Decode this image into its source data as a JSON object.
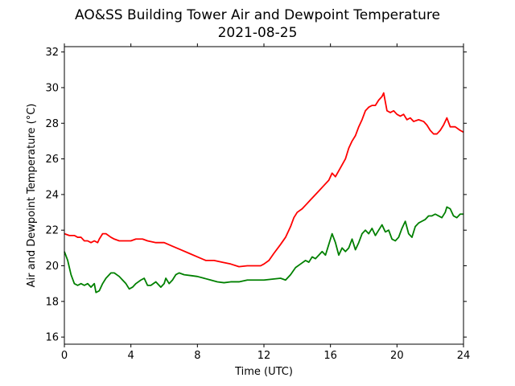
{
  "chart_data": {
    "type": "line",
    "title": "AO&SS Building Tower Air and Dewpoint Temperature",
    "subtitle": "2021-08-25",
    "xlabel": "Time (UTC)",
    "ylabel": "Air and Dewpoint Temperature (°C)",
    "xlim": [
      0,
      24
    ],
    "ylim": [
      15.6,
      32.3
    ],
    "x_ticks": [
      0,
      4,
      8,
      12,
      16,
      20,
      24
    ],
    "y_ticks": [
      16,
      18,
      20,
      22,
      24,
      26,
      28,
      30,
      32
    ],
    "grid": false,
    "legend": "none",
    "series": [
      {
        "color": "#ff0000",
        "points": [
          [
            0,
            21.8
          ],
          [
            0.3,
            21.7
          ],
          [
            0.6,
            21.7
          ],
          [
            0.8,
            21.6
          ],
          [
            1.0,
            21.6
          ],
          [
            1.2,
            21.4
          ],
          [
            1.4,
            21.4
          ],
          [
            1.6,
            21.3
          ],
          [
            1.8,
            21.4
          ],
          [
            2.0,
            21.3
          ],
          [
            2.1,
            21.5
          ],
          [
            2.3,
            21.8
          ],
          [
            2.5,
            21.8
          ],
          [
            2.8,
            21.6
          ],
          [
            3.0,
            21.5
          ],
          [
            3.3,
            21.4
          ],
          [
            3.6,
            21.4
          ],
          [
            4.0,
            21.4
          ],
          [
            4.3,
            21.5
          ],
          [
            4.7,
            21.5
          ],
          [
            5.0,
            21.4
          ],
          [
            5.5,
            21.3
          ],
          [
            6.0,
            21.3
          ],
          [
            6.5,
            21.1
          ],
          [
            7.0,
            20.9
          ],
          [
            7.5,
            20.7
          ],
          [
            8.0,
            20.5
          ],
          [
            8.5,
            20.3
          ],
          [
            9.0,
            20.3
          ],
          [
            9.5,
            20.2
          ],
          [
            10.0,
            20.1
          ],
          [
            10.5,
            19.95
          ],
          [
            11.0,
            20.0
          ],
          [
            11.5,
            20.0
          ],
          [
            11.8,
            20.0
          ],
          [
            12.0,
            20.1
          ],
          [
            12.3,
            20.3
          ],
          [
            12.6,
            20.7
          ],
          [
            13.0,
            21.2
          ],
          [
            13.3,
            21.6
          ],
          [
            13.6,
            22.2
          ],
          [
            13.8,
            22.7
          ],
          [
            14.0,
            23.0
          ],
          [
            14.3,
            23.2
          ],
          [
            14.5,
            23.4
          ],
          [
            14.8,
            23.7
          ],
          [
            15.0,
            23.9
          ],
          [
            15.3,
            24.2
          ],
          [
            15.6,
            24.5
          ],
          [
            15.9,
            24.8
          ],
          [
            16.1,
            25.2
          ],
          [
            16.3,
            25.0
          ],
          [
            16.6,
            25.5
          ],
          [
            16.9,
            26.0
          ],
          [
            17.1,
            26.6
          ],
          [
            17.3,
            27.0
          ],
          [
            17.5,
            27.3
          ],
          [
            17.7,
            27.8
          ],
          [
            17.9,
            28.2
          ],
          [
            18.1,
            28.7
          ],
          [
            18.3,
            28.9
          ],
          [
            18.5,
            29.0
          ],
          [
            18.7,
            29.0
          ],
          [
            18.9,
            29.3
          ],
          [
            19.1,
            29.5
          ],
          [
            19.2,
            29.7
          ],
          [
            19.4,
            28.7
          ],
          [
            19.6,
            28.6
          ],
          [
            19.8,
            28.7
          ],
          [
            20.0,
            28.5
          ],
          [
            20.2,
            28.4
          ],
          [
            20.4,
            28.5
          ],
          [
            20.6,
            28.2
          ],
          [
            20.8,
            28.3
          ],
          [
            21.0,
            28.1
          ],
          [
            21.3,
            28.2
          ],
          [
            21.6,
            28.1
          ],
          [
            21.8,
            27.9
          ],
          [
            22.0,
            27.6
          ],
          [
            22.2,
            27.4
          ],
          [
            22.4,
            27.4
          ],
          [
            22.6,
            27.6
          ],
          [
            22.8,
            27.9
          ],
          [
            23.0,
            28.3
          ],
          [
            23.2,
            27.8
          ],
          [
            23.5,
            27.8
          ],
          [
            23.8,
            27.6
          ],
          [
            24.0,
            27.5
          ]
        ]
      },
      {
        "color": "#008000",
        "points": [
          [
            0,
            20.8
          ],
          [
            0.2,
            20.3
          ],
          [
            0.4,
            19.5
          ],
          [
            0.6,
            19.0
          ],
          [
            0.8,
            18.9
          ],
          [
            1.0,
            19.0
          ],
          [
            1.2,
            18.9
          ],
          [
            1.4,
            19.0
          ],
          [
            1.6,
            18.8
          ],
          [
            1.8,
            19.0
          ],
          [
            1.9,
            18.5
          ],
          [
            2.1,
            18.6
          ],
          [
            2.3,
            19.0
          ],
          [
            2.5,
            19.3
          ],
          [
            2.8,
            19.6
          ],
          [
            3.0,
            19.6
          ],
          [
            3.3,
            19.4
          ],
          [
            3.5,
            19.2
          ],
          [
            3.7,
            19.0
          ],
          [
            3.9,
            18.7
          ],
          [
            4.1,
            18.8
          ],
          [
            4.3,
            19.0
          ],
          [
            4.6,
            19.2
          ],
          [
            4.8,
            19.3
          ],
          [
            5.0,
            18.9
          ],
          [
            5.2,
            18.9
          ],
          [
            5.5,
            19.1
          ],
          [
            5.8,
            18.8
          ],
          [
            6.0,
            19.0
          ],
          [
            6.1,
            19.3
          ],
          [
            6.3,
            19.0
          ],
          [
            6.5,
            19.2
          ],
          [
            6.7,
            19.5
          ],
          [
            6.9,
            19.6
          ],
          [
            7.2,
            19.5
          ],
          [
            7.6,
            19.45
          ],
          [
            8.0,
            19.4
          ],
          [
            8.4,
            19.3
          ],
          [
            8.8,
            19.2
          ],
          [
            9.2,
            19.1
          ],
          [
            9.6,
            19.05
          ],
          [
            10.0,
            19.1
          ],
          [
            10.5,
            19.1
          ],
          [
            11.0,
            19.2
          ],
          [
            11.5,
            19.2
          ],
          [
            12.0,
            19.2
          ],
          [
            12.5,
            19.25
          ],
          [
            13.0,
            19.3
          ],
          [
            13.3,
            19.2
          ],
          [
            13.6,
            19.5
          ],
          [
            13.9,
            19.9
          ],
          [
            14.2,
            20.1
          ],
          [
            14.5,
            20.3
          ],
          [
            14.7,
            20.2
          ],
          [
            14.9,
            20.5
          ],
          [
            15.1,
            20.4
          ],
          [
            15.3,
            20.6
          ],
          [
            15.5,
            20.8
          ],
          [
            15.7,
            20.6
          ],
          [
            15.9,
            21.2
          ],
          [
            16.1,
            21.8
          ],
          [
            16.3,
            21.3
          ],
          [
            16.5,
            20.6
          ],
          [
            16.7,
            21.0
          ],
          [
            16.9,
            20.8
          ],
          [
            17.1,
            21.0
          ],
          [
            17.3,
            21.5
          ],
          [
            17.5,
            20.9
          ],
          [
            17.7,
            21.3
          ],
          [
            17.9,
            21.8
          ],
          [
            18.1,
            22.0
          ],
          [
            18.3,
            21.8
          ],
          [
            18.5,
            22.1
          ],
          [
            18.7,
            21.7
          ],
          [
            18.9,
            22.0
          ],
          [
            19.1,
            22.3
          ],
          [
            19.3,
            21.9
          ],
          [
            19.5,
            22.0
          ],
          [
            19.7,
            21.5
          ],
          [
            19.9,
            21.4
          ],
          [
            20.1,
            21.6
          ],
          [
            20.3,
            22.1
          ],
          [
            20.5,
            22.5
          ],
          [
            20.7,
            21.8
          ],
          [
            20.9,
            21.6
          ],
          [
            21.1,
            22.2
          ],
          [
            21.3,
            22.4
          ],
          [
            21.5,
            22.5
          ],
          [
            21.7,
            22.6
          ],
          [
            21.9,
            22.8
          ],
          [
            22.1,
            22.8
          ],
          [
            22.3,
            22.9
          ],
          [
            22.5,
            22.8
          ],
          [
            22.7,
            22.7
          ],
          [
            22.9,
            23.0
          ],
          [
            23.0,
            23.3
          ],
          [
            23.2,
            23.2
          ],
          [
            23.4,
            22.8
          ],
          [
            23.6,
            22.7
          ],
          [
            23.8,
            22.9
          ],
          [
            24.0,
            22.9
          ]
        ]
      }
    ]
  }
}
